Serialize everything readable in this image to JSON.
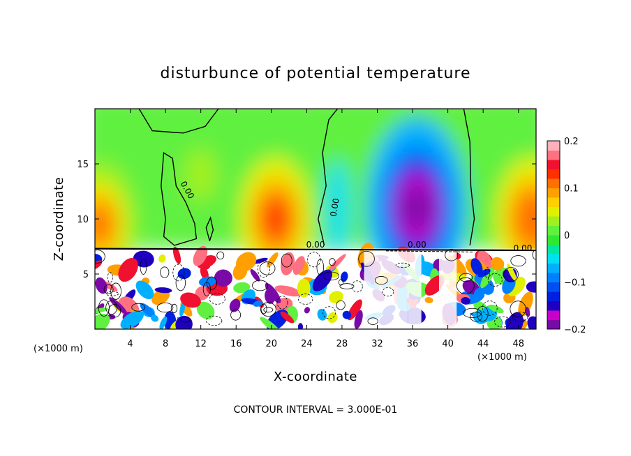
{
  "chart_data": {
    "type": "heatmap",
    "title": "disturbunce of potential temperature",
    "xlabel": "X-coordinate",
    "ylabel": "Z-coordinate",
    "x_unit_label": "(×1000 m)",
    "z_unit_label": "(×1000 m)",
    "xlim": [
      0,
      50
    ],
    "ylim": [
      0,
      20
    ],
    "x_ticks": [
      4,
      8,
      12,
      16,
      20,
      24,
      28,
      32,
      36,
      40,
      44,
      48
    ],
    "x_tick_labels": [
      "4",
      "8",
      "12",
      "16",
      "20",
      "24",
      "28",
      "32",
      "36",
      "40",
      "44",
      "48"
    ],
    "y_ticks": [
      5,
      10,
      15
    ],
    "y_tick_labels": [
      "5",
      "10",
      "15"
    ],
    "colorbar": {
      "range": [
        -0.2,
        0.2
      ],
      "ticks": [
        0.2,
        0.1,
        0,
        -0.1,
        -0.2
      ],
      "tick_labels": [
        "0.2",
        "0.1",
        "0",
        "−0.1",
        "−0.2"
      ],
      "colors": [
        "#7a0aa8",
        "#c800c8",
        "#2000c0",
        "#0020e0",
        "#0050f0",
        "#0080ff",
        "#00b0ff",
        "#00e0f0",
        "#00e8a0",
        "#30e830",
        "#60f040",
        "#a0f020",
        "#e0f000",
        "#ffd000",
        "#ffa000",
        "#ff7000",
        "#ff3000",
        "#f01030",
        "#ff7080",
        "#ffb0b8"
      ]
    },
    "contour_labels": [
      "0.00",
      "0.00",
      "0.00",
      "0.00",
      "0.00"
    ],
    "contour_interval_text": "CONTOUR INTERVAL = 3.000E-01",
    "interface_height": 7.3,
    "upper_features": [
      {
        "name": "negative anomaly",
        "x": 36.5,
        "z": 11,
        "value": -0.2
      },
      {
        "name": "positive anomaly",
        "x": 20.5,
        "z": 10,
        "value": 0.13
      },
      {
        "name": "positive anomaly",
        "x": 49.5,
        "z": 10,
        "value": 0.12
      },
      {
        "name": "positive anomaly",
        "x": 0.5,
        "z": 9.5,
        "value": 0.1
      },
      {
        "name": "weak positive anomaly",
        "x": 12,
        "z": 14,
        "value": 0.03
      }
    ]
  }
}
